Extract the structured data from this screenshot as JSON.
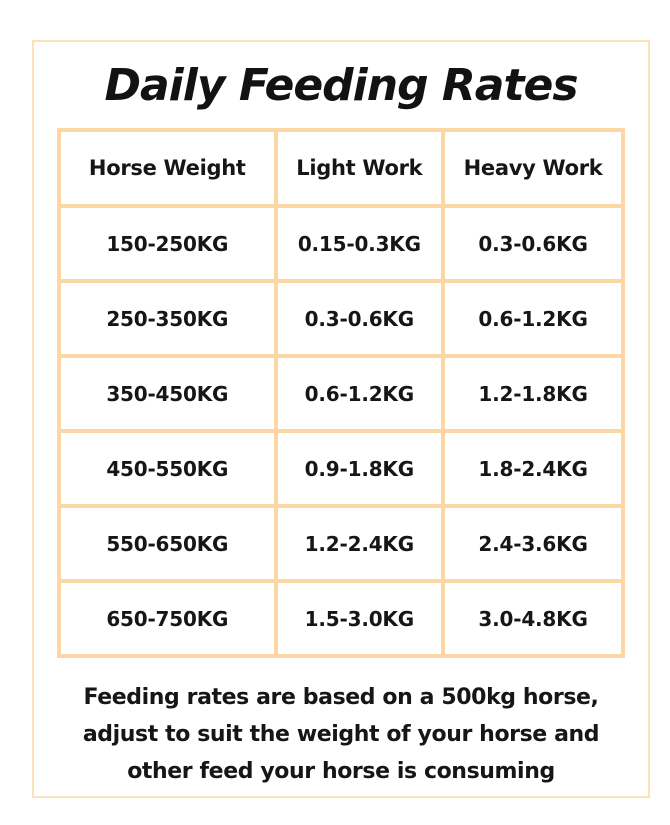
{
  "title": "Daily Feeding Rates",
  "table": {
    "headers": [
      "Horse Weight",
      "Light Work",
      "Heavy Work"
    ],
    "rows": [
      [
        "150-250KG",
        "0.15-0.3KG",
        "0.3-0.6KG"
      ],
      [
        "250-350KG",
        "0.3-0.6KG",
        "0.6-1.2KG"
      ],
      [
        "350-450KG",
        "0.6-1.2KG",
        "1.2-1.8KG"
      ],
      [
        "450-550KG",
        "0.9-1.8KG",
        "1.8-2.4KG"
      ],
      [
        "550-650KG",
        "1.2-2.4KG",
        "2.4-3.6KG"
      ],
      [
        "650-750KG",
        "1.5-3.0KG",
        "3.0-4.8KG"
      ]
    ]
  },
  "footnote": {
    "lines": [
      "Feeding rates are based on a 500kg horse,",
      "adjust to suit the weight of your horse and",
      "other feed your horse is consuming"
    ]
  },
  "colors": {
    "table_border": "#FBD7A3",
    "card_border": "#FCE2BB",
    "text": "#161616",
    "background": "#FFFFFF"
  },
  "chart_data": {
    "type": "table",
    "title": "Daily Feeding Rates",
    "columns": [
      "Horse Weight",
      "Light Work",
      "Heavy Work"
    ],
    "rows": [
      [
        "150-250KG",
        "0.15-0.3KG",
        "0.3-0.6KG"
      ],
      [
        "250-350KG",
        "0.3-0.6KG",
        "0.6-1.2KG"
      ],
      [
        "350-450KG",
        "0.6-1.2KG",
        "1.2-1.8KG"
      ],
      [
        "450-550KG",
        "0.9-1.8KG",
        "1.8-2.4KG"
      ],
      [
        "550-650KG",
        "1.2-2.4KG",
        "2.4-3.6KG"
      ],
      [
        "650-750KG",
        "1.5-3.0KG",
        "3.0-4.8KG"
      ]
    ],
    "annotations": [
      "Feeding rates are based on a 500kg horse, adjust to suit the weight of your horse and other feed your horse is consuming"
    ],
    "units": "KG per day"
  }
}
